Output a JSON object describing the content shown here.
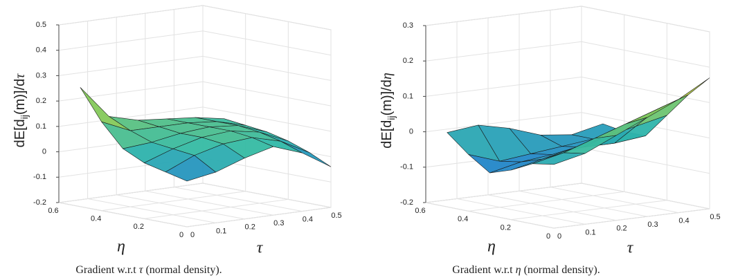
{
  "chart_data": [
    {
      "type": "surface3d",
      "zlabel": [
        "dE[d",
        "ij",
        "(m)]/d",
        "τ"
      ],
      "xlabel": "τ",
      "ylabel": "η",
      "caption": [
        "Gradient w.r.t ",
        "τ",
        " (normal density)."
      ],
      "x": [
        0,
        0.1,
        0.2,
        0.3,
        0.4,
        0.5
      ],
      "y": [
        0,
        0.1,
        0.2,
        0.3,
        0.4,
        0.5
      ],
      "z": [
        [
          -0.02,
          0.0,
          0.04,
          0.07,
          0.03,
          -0.04
        ],
        [
          0.0,
          0.05,
          0.08,
          0.09,
          0.06,
          0.0
        ],
        [
          0.02,
          0.06,
          0.09,
          0.1,
          0.08,
          0.03
        ],
        [
          0.06,
          0.07,
          0.09,
          0.1,
          0.09,
          0.05
        ],
        [
          0.15,
          0.1,
          0.1,
          0.1,
          0.09,
          0.06
        ],
        [
          0.27,
          0.14,
          0.11,
          0.1,
          0.09,
          0.07
        ]
      ],
      "xlim": [
        0,
        0.5
      ],
      "ylim": [
        0,
        0.6
      ],
      "zlim": [
        -0.2,
        0.5
      ],
      "xticks": [
        0,
        0.1,
        0.2,
        0.3,
        0.4,
        0.5
      ],
      "yticks": [
        0,
        0.2,
        0.4,
        0.6
      ],
      "zticks": [
        -0.2,
        -0.1,
        0,
        0.1,
        0.2,
        0.3,
        0.4,
        0.5
      ],
      "grid": true
    },
    {
      "type": "surface3d",
      "zlabel": [
        "dE[d",
        "ij",
        "(m)]/d",
        "η"
      ],
      "xlabel": "τ",
      "ylabel": "η",
      "caption": [
        "Gradient w.r.t ",
        "η",
        " (normal density)."
      ],
      "x": [
        0,
        0.1,
        0.2,
        0.3,
        0.4,
        0.5
      ],
      "y": [
        0,
        0.1,
        0.2,
        0.3,
        0.4,
        0.5
      ],
      "z": [
        [
          -0.02,
          0.0,
          0.04,
          0.08,
          0.12,
          0.17
        ],
        [
          -0.03,
          -0.01,
          0.02,
          0.05,
          0.08,
          0.11
        ],
        [
          -0.06,
          -0.04,
          -0.02,
          0.0,
          0.02,
          0.04
        ],
        [
          -0.08,
          -0.06,
          -0.05,
          -0.04,
          -0.04,
          -0.03
        ],
        [
          -0.04,
          -0.07,
          -0.06,
          -0.05,
          -0.04,
          -0.03
        ],
        [
          0.01,
          0.02,
          0.0,
          -0.03,
          -0.04,
          -0.02
        ]
      ],
      "xlim": [
        0,
        0.5
      ],
      "ylim": [
        0,
        0.6
      ],
      "zlim": [
        -0.2,
        0.3
      ],
      "xticks": [
        0,
        0.1,
        0.2,
        0.3,
        0.4,
        0.5
      ],
      "yticks": [
        0,
        0.2,
        0.4,
        0.6
      ],
      "zticks": [
        -0.2,
        -0.1,
        0,
        0.1,
        0.2,
        0.3
      ],
      "grid": true
    }
  ]
}
